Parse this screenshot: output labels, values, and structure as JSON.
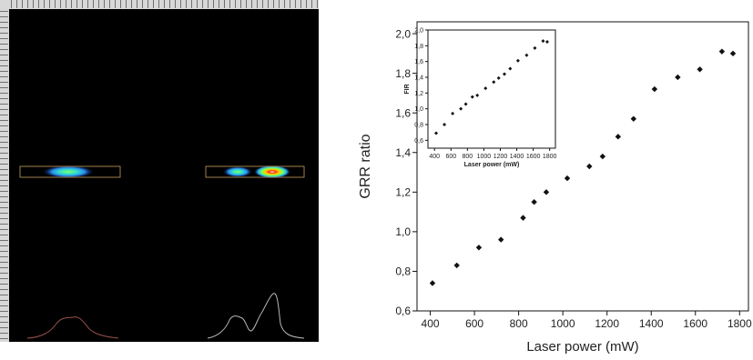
{
  "left_panel": {
    "description_colors": {
      "background": "#000000",
      "ruler": "#d8d8d8",
      "frame": "#c8a060",
      "profile": "#b8b8b8"
    }
  },
  "chart_data": [
    {
      "type": "scatter",
      "title": "",
      "xlabel": "Laser power (mW)",
      "ylabel": "GRR ratio",
      "xlim": [
        340,
        1840
      ],
      "ylim": [
        0.6,
        2.06
      ],
      "xticks": [
        "400",
        "600",
        "800",
        "1000",
        "1200",
        "1400",
        "1600",
        "1800"
      ],
      "yticks": [
        "0,6",
        "0,8",
        "1,0",
        "1,2",
        "1,4",
        "1,6",
        "1,8",
        "2,0"
      ],
      "marker": "diamond",
      "color": "#111111",
      "series": [
        {
          "x": [
            410,
            520,
            620,
            720,
            820,
            870,
            925,
            1020,
            1120,
            1180,
            1250,
            1320,
            1415,
            1520,
            1620,
            1720,
            1770
          ],
          "y": [
            0.74,
            0.83,
            0.92,
            0.96,
            1.07,
            1.15,
            1.2,
            1.27,
            1.33,
            1.38,
            1.48,
            1.57,
            1.72,
            1.78,
            1.82,
            1.91,
            1.9
          ]
        }
      ]
    },
    {
      "type": "scatter",
      "title": "",
      "xlabel": "Laser power (mW)",
      "ylabel": "FIR",
      "xlim": [
        320,
        1870
      ],
      "ylim": [
        0.5,
        2.0
      ],
      "xticks": [
        "400",
        "600",
        "800",
        "1000",
        "1200",
        "1400",
        "1600",
        "1800"
      ],
      "yticks": [
        "0,6",
        "0,8",
        "1,0",
        "1,2",
        "1,4",
        "1,6",
        "1,8",
        "2,0"
      ],
      "marker": "diamond",
      "color": "#111111",
      "series": [
        {
          "x": [
            420,
            520,
            620,
            720,
            780,
            860,
            920,
            1020,
            1120,
            1180,
            1250,
            1320,
            1415,
            1520,
            1620,
            1720,
            1770
          ],
          "y": [
            0.69,
            0.8,
            0.94,
            1.0,
            1.06,
            1.15,
            1.17,
            1.26,
            1.34,
            1.39,
            1.44,
            1.51,
            1.61,
            1.68,
            1.77,
            1.86,
            1.85
          ]
        }
      ]
    }
  ]
}
